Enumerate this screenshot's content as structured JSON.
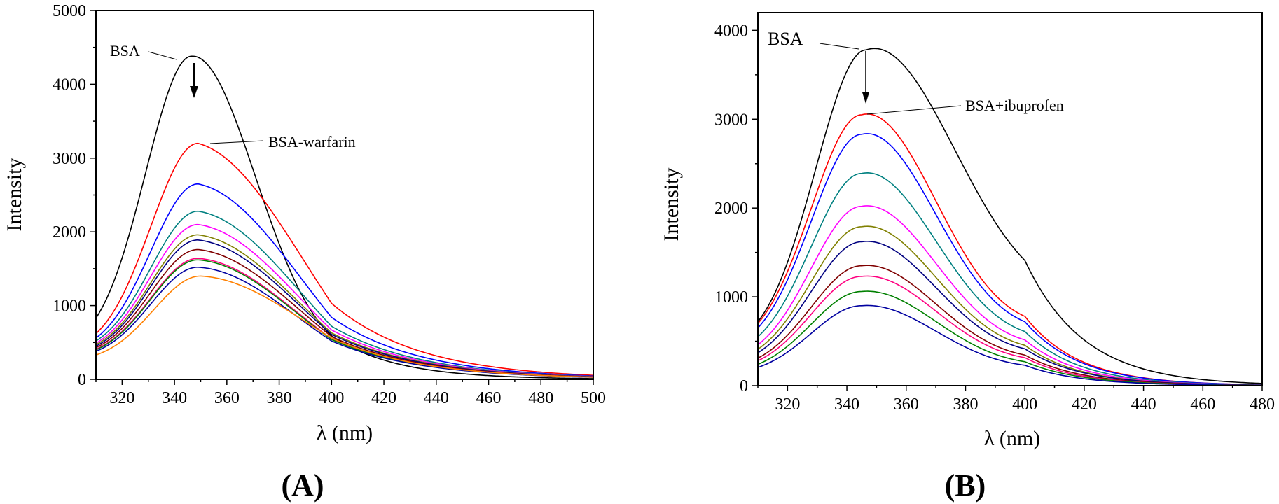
{
  "colors": {
    "black": "#000000",
    "red": "#ff0000",
    "blue": "#0000ff",
    "teal": "#008080",
    "magenta": "#ff00ff",
    "olive": "#808000",
    "navy": "#000080",
    "maroon": "#800000",
    "pink": "#ff0080",
    "green": "#008000",
    "darkblue": "#0000a0",
    "orange": "#ff8000"
  },
  "chart_data": [
    {
      "type": "line",
      "panel_label": "(A)",
      "xlabel": "λ (nm)",
      "ylabel": "Intensity",
      "xlim": [
        310,
        500
      ],
      "ylim": [
        0,
        5000
      ],
      "xticks": [
        320,
        340,
        360,
        380,
        400,
        420,
        440,
        460,
        480,
        500
      ],
      "yticks": [
        0,
        1000,
        2000,
        3000,
        4000,
        5000
      ],
      "grid": false,
      "annotations": [
        {
          "text": "BSA",
          "points_to_x": 342,
          "points_to_y": 4330
        },
        {
          "text": "BSA-warfarin",
          "points_to_x": 353,
          "points_to_y": 3200
        }
      ],
      "arrow": {
        "from_x": 347,
        "from_y": 4250,
        "to_x": 347,
        "to_y": 3810
      },
      "series": [
        {
          "color": "#000000",
          "peak_x": 346.5,
          "peak_y": 4380,
          "y_at_310": 830,
          "y_at_400": 590,
          "y_at_500": 10,
          "left_width": 17.5,
          "right_width": 24.5
        },
        {
          "color": "#ff0000",
          "peak_x": 349,
          "peak_y": 3200,
          "y_at_310": 620,
          "y_at_400": 1030,
          "y_at_500": 55,
          "left_width": 18,
          "right_width": 41
        },
        {
          "color": "#0000ff",
          "peak_x": 349,
          "peak_y": 2650,
          "y_at_310": 560,
          "y_at_400": 840,
          "y_at_500": 45,
          "left_width": 18,
          "right_width": 40
        },
        {
          "color": "#008080",
          "peak_x": 349,
          "peak_y": 2280,
          "y_at_310": 520,
          "y_at_400": 720,
          "y_at_500": 40,
          "left_width": 18,
          "right_width": 39
        },
        {
          "color": "#ff00ff",
          "peak_x": 349,
          "peak_y": 2100,
          "y_at_310": 490,
          "y_at_400": 670,
          "y_at_500": 38,
          "left_width": 18,
          "right_width": 39
        },
        {
          "color": "#808000",
          "peak_x": 349,
          "peak_y": 1960,
          "y_at_310": 470,
          "y_at_400": 630,
          "y_at_500": 36,
          "left_width": 18,
          "right_width": 39
        },
        {
          "color": "#000080",
          "peak_x": 349,
          "peak_y": 1890,
          "y_at_310": 450,
          "y_at_400": 610,
          "y_at_500": 35,
          "left_width": 18,
          "right_width": 39
        },
        {
          "color": "#800000",
          "peak_x": 349,
          "peak_y": 1760,
          "y_at_310": 430,
          "y_at_400": 580,
          "y_at_500": 33,
          "left_width": 18,
          "right_width": 39
        },
        {
          "color": "#ff0080",
          "peak_x": 349,
          "peak_y": 1640,
          "y_at_310": 410,
          "y_at_400": 550,
          "y_at_500": 31,
          "left_width": 18,
          "right_width": 38
        },
        {
          "color": "#008000",
          "peak_x": 349,
          "peak_y": 1620,
          "y_at_310": 400,
          "y_at_400": 540,
          "y_at_500": 30,
          "left_width": 18,
          "right_width": 38
        },
        {
          "color": "#0000a0",
          "peak_x": 349,
          "peak_y": 1520,
          "y_at_310": 380,
          "y_at_400": 520,
          "y_at_500": 28,
          "left_width": 18,
          "right_width": 38
        },
        {
          "color": "#ff8000",
          "peak_x": 350,
          "peak_y": 1400,
          "y_at_310": 330,
          "y_at_400": 560,
          "y_at_500": 30,
          "left_width": 18,
          "right_width": 40
        }
      ]
    },
    {
      "type": "line",
      "panel_label": "(B)",
      "xlabel": "λ (nm)",
      "ylabel": "Intensity",
      "xlim": [
        310,
        480
      ],
      "ylim": [
        0,
        4200
      ],
      "xticks": [
        320,
        340,
        360,
        380,
        400,
        420,
        440,
        460,
        480
      ],
      "yticks": [
        0,
        1000,
        2000,
        3000,
        4000
      ],
      "grid": false,
      "annotations": [
        {
          "text": "BSA",
          "points_to_x": 346,
          "points_to_y": 3800
        },
        {
          "text": "BSA+ibuprofen",
          "points_to_x": 347,
          "points_to_y": 3060
        }
      ],
      "arrow": {
        "from_x": 345.5,
        "from_y": 3720,
        "to_x": 345.5,
        "to_y": 3130
      },
      "series": [
        {
          "color": "#000000",
          "peak_x": 346.5,
          "peak_y": 3780,
          "y_at_310": 720,
          "y_at_400": 1410,
          "y_at_480": 25,
          "left_width": 17,
          "right_width": 30
        },
        {
          "color": "#ff0000",
          "peak_x": 345,
          "peak_y": 3050,
          "y_at_310": 700,
          "y_at_400": 780,
          "y_at_480": 10,
          "left_width": 17,
          "right_width": 25
        },
        {
          "color": "#0000ff",
          "peak_x": 345,
          "peak_y": 2830,
          "y_at_310": 650,
          "y_at_400": 720,
          "y_at_480": 10,
          "left_width": 17,
          "right_width": 25
        },
        {
          "color": "#008080",
          "peak_x": 345,
          "peak_y": 2390,
          "y_at_310": 550,
          "y_at_400": 610,
          "y_at_480": 8,
          "left_width": 17,
          "right_width": 25
        },
        {
          "color": "#ff00ff",
          "peak_x": 345,
          "peak_y": 2020,
          "y_at_310": 460,
          "y_at_400": 515,
          "y_at_480": 7,
          "left_width": 17,
          "right_width": 25
        },
        {
          "color": "#808000",
          "peak_x": 345,
          "peak_y": 1790,
          "y_at_310": 410,
          "y_at_400": 455,
          "y_at_480": 6,
          "left_width": 17,
          "right_width": 25
        },
        {
          "color": "#000080",
          "peak_x": 345,
          "peak_y": 1620,
          "y_at_310": 370,
          "y_at_400": 415,
          "y_at_480": 6,
          "left_width": 17,
          "right_width": 25
        },
        {
          "color": "#800000",
          "peak_x": 345,
          "peak_y": 1350,
          "y_at_310": 310,
          "y_at_400": 345,
          "y_at_480": 5,
          "left_width": 17,
          "right_width": 25
        },
        {
          "color": "#ff0080",
          "peak_x": 345,
          "peak_y": 1230,
          "y_at_310": 280,
          "y_at_400": 315,
          "y_at_480": 4,
          "left_width": 17,
          "right_width": 25
        },
        {
          "color": "#008000",
          "peak_x": 345,
          "peak_y": 1060,
          "y_at_310": 240,
          "y_at_400": 270,
          "y_at_480": 4,
          "left_width": 17,
          "right_width": 25
        },
        {
          "color": "#0000a0",
          "peak_x": 345,
          "peak_y": 900,
          "y_at_310": 205,
          "y_at_400": 230,
          "y_at_480": 3,
          "left_width": 17,
          "right_width": 25
        }
      ]
    }
  ]
}
